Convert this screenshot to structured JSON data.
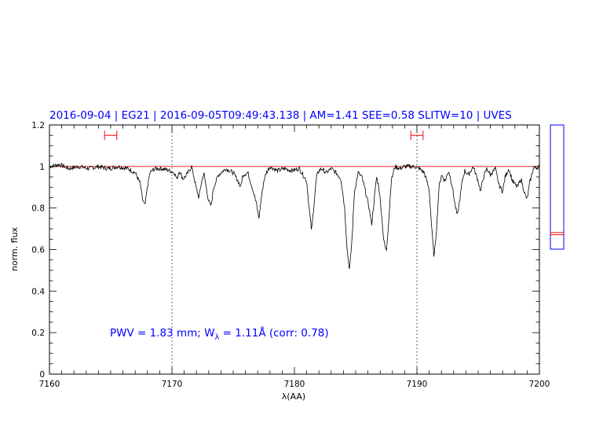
{
  "header": {
    "title": "2016-09-04  | EG21 | 2016-09-05T09:49:43.138 | AM=1.41  SEE=0.58  SLITW=10 | UVES"
  },
  "annotation": {
    "pwv_prefix": "PWV  =  1.83  mm;  W",
    "pwv_sub": "λ",
    "pwv_suffix": "  =  1.11Å  (corr:  0.78)"
  },
  "colors": {
    "title": "#0000ff",
    "annotation": "#0000ff",
    "spectrum": "#000000",
    "continuum": "#ff0000",
    "markers": "#ff0000",
    "side_panel": "#0000ff"
  },
  "chart_data": {
    "type": "line",
    "title": "2016-09-04  | EG21 | 2016-09-05T09:49:43.138 | AM=1.41  SEE=0.58  SLITW=10 | UVES",
    "xlabel": "λ(AA)",
    "ylabel": "norm.  flux",
    "xlim": [
      7160,
      7200
    ],
    "ylim": [
      0,
      1.2
    ],
    "x_ticks": [
      7160,
      7170,
      7180,
      7190,
      7200
    ],
    "x_tick_labels": [
      "7160",
      "7170",
      "7180",
      "7190",
      "7200"
    ],
    "y_ticks": [
      0,
      0.2,
      0.4,
      0.6,
      0.8,
      1,
      1.2
    ],
    "y_tick_labels": [
      "0",
      "0.2",
      "0.4",
      "0.6",
      "0.8",
      "1",
      "1.2"
    ],
    "grid": false,
    "continuum_level": 1.0,
    "reference_lines": [
      7170,
      7190
    ],
    "marker_ranges": [
      {
        "x": [
          7164.5,
          7165.5
        ],
        "y": 1.15
      },
      {
        "x": [
          7189.5,
          7190.5
        ],
        "y": 1.15
      }
    ],
    "series": [
      {
        "x": [
          7160.0,
          7160.8,
          7161.6,
          7162.4,
          7163.2,
          7164.0,
          7164.8,
          7165.6,
          7166.4,
          7167.0,
          7167.4,
          7167.6,
          7167.8,
          7168.0,
          7168.2,
          7168.6,
          7169.2,
          7169.8,
          7170.2,
          7170.4,
          7170.6,
          7170.9,
          7171.2,
          7171.6,
          7171.8,
          7172.0,
          7172.2,
          7172.4,
          7172.6,
          7172.8,
          7173.0,
          7173.2,
          7173.4,
          7173.8,
          7174.4,
          7175.0,
          7175.4,
          7175.6,
          7175.8,
          7176.2,
          7176.6,
          7176.9,
          7177.1,
          7177.3,
          7177.5,
          7177.7,
          7178.0,
          7178.6,
          7179.2,
          7179.8,
          7180.4,
          7181.0,
          7181.2,
          7181.4,
          7181.6,
          7181.8,
          7182.0,
          7182.2,
          7182.6,
          7183.0,
          7183.4,
          7183.8,
          7184.1,
          7184.3,
          7184.5,
          7184.7,
          7184.9,
          7185.2,
          7185.5,
          7185.8,
          7186.1,
          7186.3,
          7186.5,
          7186.7,
          7186.9,
          7187.1,
          7187.3,
          7187.5,
          7187.7,
          7187.9,
          7188.2,
          7188.6,
          7189.0,
          7189.4,
          7189.8,
          7190.2,
          7190.6,
          7191.0,
          7191.2,
          7191.4,
          7191.6,
          7191.8,
          7192.0,
          7192.3,
          7192.6,
          7192.9,
          7193.1,
          7193.3,
          7193.5,
          7193.7,
          7193.9,
          7194.2,
          7194.6,
          7195.0,
          7195.2,
          7195.4,
          7195.7,
          7196.0,
          7196.4,
          7196.7,
          7197.0,
          7197.2,
          7197.5,
          7197.8,
          7198.2,
          7198.5,
          7198.8,
          7199.0,
          7199.2,
          7199.5,
          7200.0
        ],
        "y": [
          1.0,
          1.01,
          0.99,
          1.0,
          0.99,
          1.0,
          0.99,
          1.0,
          0.99,
          0.97,
          0.92,
          0.84,
          0.81,
          0.9,
          0.97,
          0.99,
          0.99,
          0.98,
          0.97,
          0.94,
          0.98,
          0.94,
          0.96,
          1.0,
          0.95,
          0.89,
          0.85,
          0.92,
          0.97,
          0.9,
          0.83,
          0.81,
          0.9,
          0.96,
          0.99,
          0.97,
          0.93,
          0.9,
          0.96,
          0.97,
          0.89,
          0.82,
          0.75,
          0.85,
          0.93,
          0.97,
          1.0,
          0.98,
          0.99,
          0.98,
          0.99,
          0.93,
          0.8,
          0.69,
          0.82,
          0.95,
          0.98,
          0.99,
          0.97,
          0.99,
          0.97,
          0.94,
          0.8,
          0.6,
          0.5,
          0.65,
          0.88,
          0.97,
          0.95,
          0.88,
          0.8,
          0.72,
          0.83,
          0.95,
          0.9,
          0.78,
          0.64,
          0.59,
          0.74,
          0.93,
          1.0,
          0.99,
          1.0,
          1.0,
          1.0,
          0.99,
          0.97,
          0.89,
          0.71,
          0.56,
          0.7,
          0.9,
          0.96,
          0.93,
          0.98,
          0.9,
          0.82,
          0.76,
          0.84,
          0.93,
          0.98,
          0.96,
          1.0,
          0.93,
          0.88,
          0.94,
          0.99,
          0.96,
          0.99,
          0.91,
          0.88,
          0.95,
          0.99,
          0.93,
          0.9,
          0.94,
          0.87,
          0.84,
          0.92,
          0.99,
          1.0
        ]
      }
    ],
    "side_panel": {
      "ylim": [
        0.6,
        1.2
      ],
      "marker_levels": [
        0.67,
        0.68
      ]
    }
  }
}
